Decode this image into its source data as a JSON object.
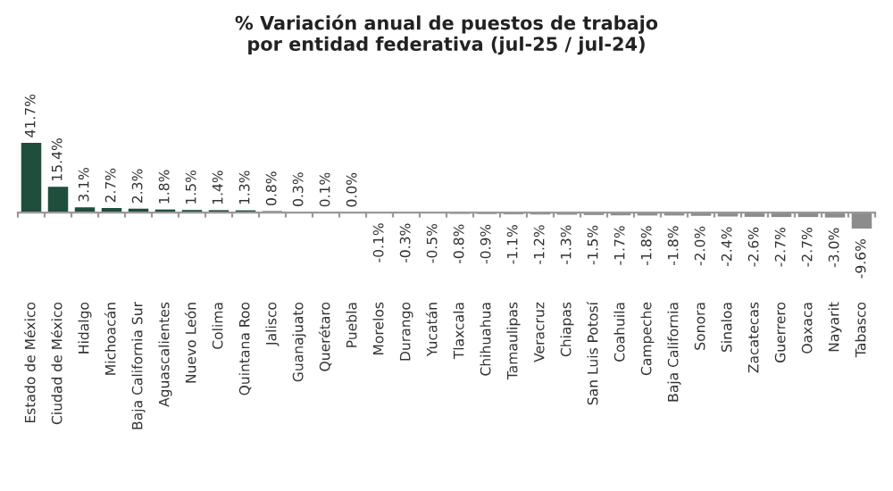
{
  "chart_data": {
    "type": "bar",
    "title": "% Variación anual de puestos de trabajo\npor entidad federativa (jul-25 / jul-24)",
    "categories": [
      "Estado de México",
      "Ciudad de México",
      "Hidalgo",
      "Michoacán",
      "Baja California Sur",
      "Aguascalientes",
      "Nuevo León",
      "Colima",
      "Quintana Roo",
      "Jalisco",
      "Guanajuato",
      "Querétaro",
      "Puebla",
      "Morelos",
      "Durango",
      "Yucatán",
      "Tlaxcala",
      "Chihuahua",
      "Tamaulipas",
      "Veracruz",
      "Chiapas",
      "San Luis Potosí",
      "Coahuila",
      "Campeche",
      "Baja California",
      "Sonora",
      "Sinaloa",
      "Zacatecas",
      "Guerrero",
      "Oaxaca",
      "Nayarit",
      "Tabasco"
    ],
    "values": [
      41.7,
      15.4,
      3.1,
      2.7,
      2.3,
      1.8,
      1.5,
      1.4,
      1.3,
      0.8,
      0.3,
      0.1,
      0.0,
      -0.1,
      -0.3,
      -0.5,
      -0.8,
      -0.9,
      -1.1,
      -1.2,
      -1.3,
      -1.5,
      -1.7,
      -1.8,
      -1.8,
      -2.0,
      -2.4,
      -2.6,
      -2.7,
      -2.7,
      -3.0,
      -9.6
    ],
    "value_labels": [
      "41.7%",
      "15.4%",
      "3.1%",
      "2.7%",
      "2.3%",
      "1.8%",
      "1.5%",
      "1.4%",
      "1.3%",
      "0.8%",
      "0.3%",
      "0.1%",
      "0.0%",
      "-0.1%",
      "-0.3%",
      "-0.5%",
      "-0.8%",
      "-0.9%",
      "-1.1%",
      "-1.2%",
      "-1.3%",
      "-1.5%",
      "-1.7%",
      "-1.8%",
      "-1.8%",
      "-2.0%",
      "-2.4%",
      "-2.6%",
      "-2.7%",
      "-2.7%",
      "-3.0%",
      "-9.6%"
    ],
    "colors": [
      "#1f4e3d",
      "#1f4e3d",
      "#1f4e3d",
      "#1f4e3d",
      "#1f4e3d",
      "#1f4e3d",
      "#1f4e3d",
      "#1f4e3d",
      "#1f4e3d",
      "#1f4e3d",
      "#1f4e3d",
      "#1f4e3d",
      "#1f4e3d",
      "#8c8c8c",
      "#8c8c8c",
      "#8c8c8c",
      "#8c8c8c",
      "#8c8c8c",
      "#8c8c8c",
      "#8c8c8c",
      "#8c8c8c",
      "#8c8c8c",
      "#8c8c8c",
      "#8c8c8c",
      "#8c8c8c",
      "#8c8c8c",
      "#8c8c8c",
      "#8c8c8c",
      "#8c8c8c",
      "#8c8c8c",
      "#8c8c8c",
      "#8c8c8c"
    ],
    "grid": false,
    "legend": false
  }
}
